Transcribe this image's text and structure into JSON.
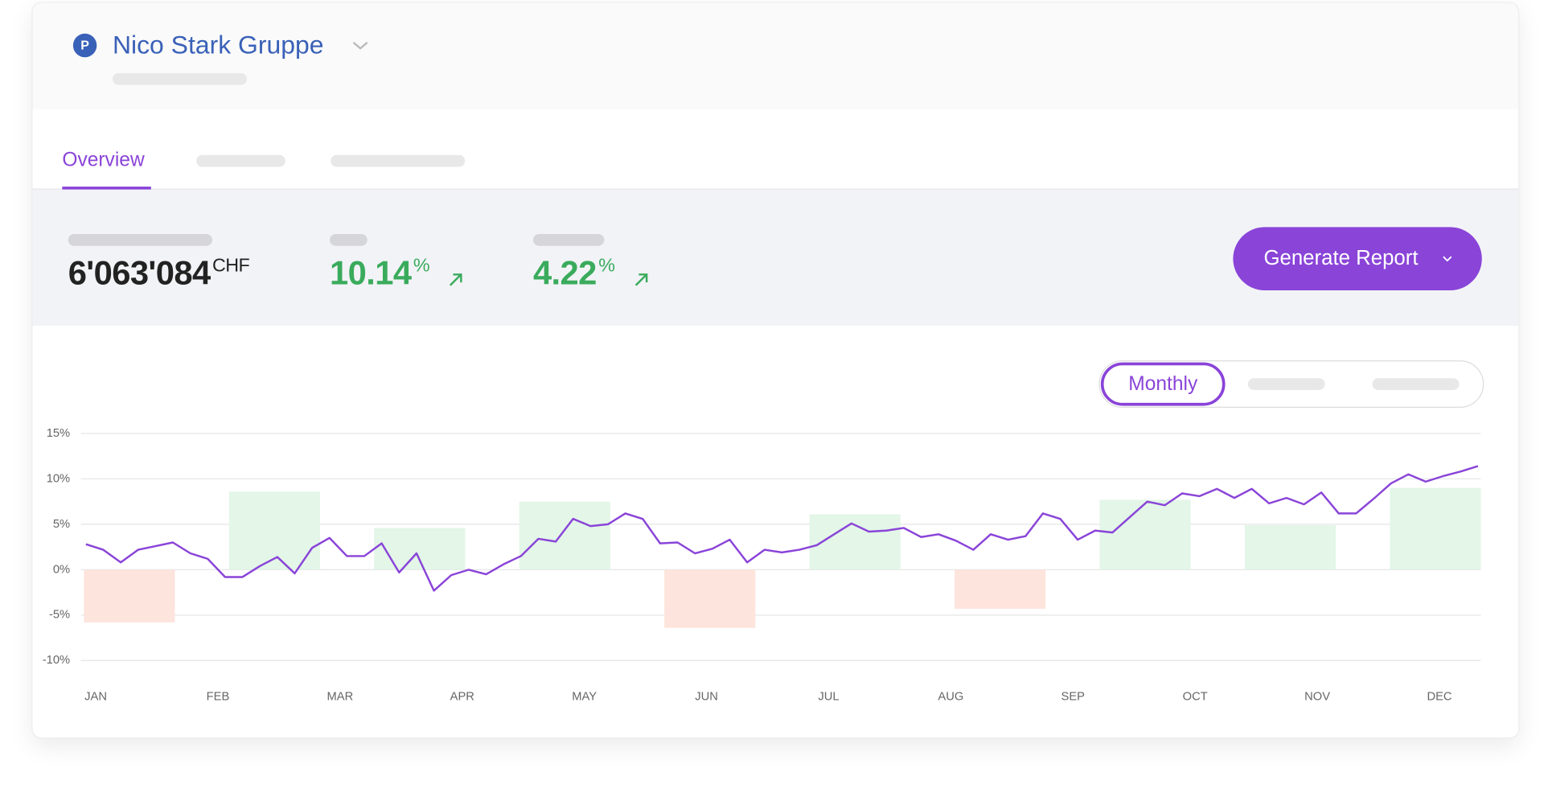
{
  "header": {
    "badge": "P",
    "title": "Nico Stark Gruppe"
  },
  "tabs": [
    "Overview"
  ],
  "metrics": [
    {
      "value": "6'063'084",
      "unit": "CHF"
    },
    {
      "value": 10.14,
      "unit": "%"
    },
    {
      "value": 4.22,
      "unit": "%"
    }
  ],
  "button": "Generate Report",
  "toggle": [
    "Monthly"
  ],
  "chart_data": {
    "type": "bar",
    "categories": [
      "JAN",
      "FEB",
      "MAR",
      "APR",
      "MAY",
      "JUN",
      "JUL",
      "AUG",
      "SEP",
      "OCT",
      "NOV",
      "DEC"
    ],
    "bar_values": [
      -5.8,
      8.6,
      4.6,
      7.5,
      -6.4,
      6.1,
      -4.3,
      7.7,
      4.9,
      9.0
    ],
    "positive_color": "#e3f6e8",
    "negative_color": "#fde4dc",
    "line_values": [
      2.8,
      2.2,
      0.8,
      2.2,
      2.6,
      3.0,
      1.8,
      1.2,
      -0.8,
      -0.8,
      0.4,
      1.4,
      -0.4,
      2.4,
      3.5,
      1.5,
      1.5,
      2.9,
      -0.3,
      1.8,
      -2.3,
      -0.6,
      0,
      -0.5,
      0.6,
      1.5,
      3.4,
      3.1,
      5.6,
      4.8,
      5.0,
      6.2,
      5.6,
      2.9,
      3.0,
      1.8,
      2.3,
      3.3,
      0.8,
      2.2,
      1.9,
      2.2,
      2.7,
      3.9,
      5.1,
      4.2,
      4.3,
      4.6,
      3.6,
      3.9,
      3.2,
      2.2,
      3.9,
      3.3,
      3.7,
      6.2,
      5.6,
      3.3,
      4.3,
      4.1,
      5.8,
      7.5,
      7.1,
      8.4,
      8.1,
      8.9,
      7.9,
      8.9,
      7.3,
      7.9,
      7.2,
      8.5,
      6.2,
      6.2,
      7.8,
      9.5,
      10.5,
      9.7,
      10.3,
      10.8,
      11.4
    ],
    "line_color": "#8a44d8",
    "ylim": [
      -10,
      15
    ],
    "yticks": [
      {
        "value": -10,
        "label": "-10%"
      },
      {
        "value": -5,
        "label": "-5%"
      },
      {
        "value": 0,
        "label": "0%"
      },
      {
        "value": 5,
        "label": "5%"
      },
      {
        "value": 10,
        "label": "10%"
      },
      {
        "value": 15,
        "label": "15%"
      }
    ],
    "grid": true
  }
}
